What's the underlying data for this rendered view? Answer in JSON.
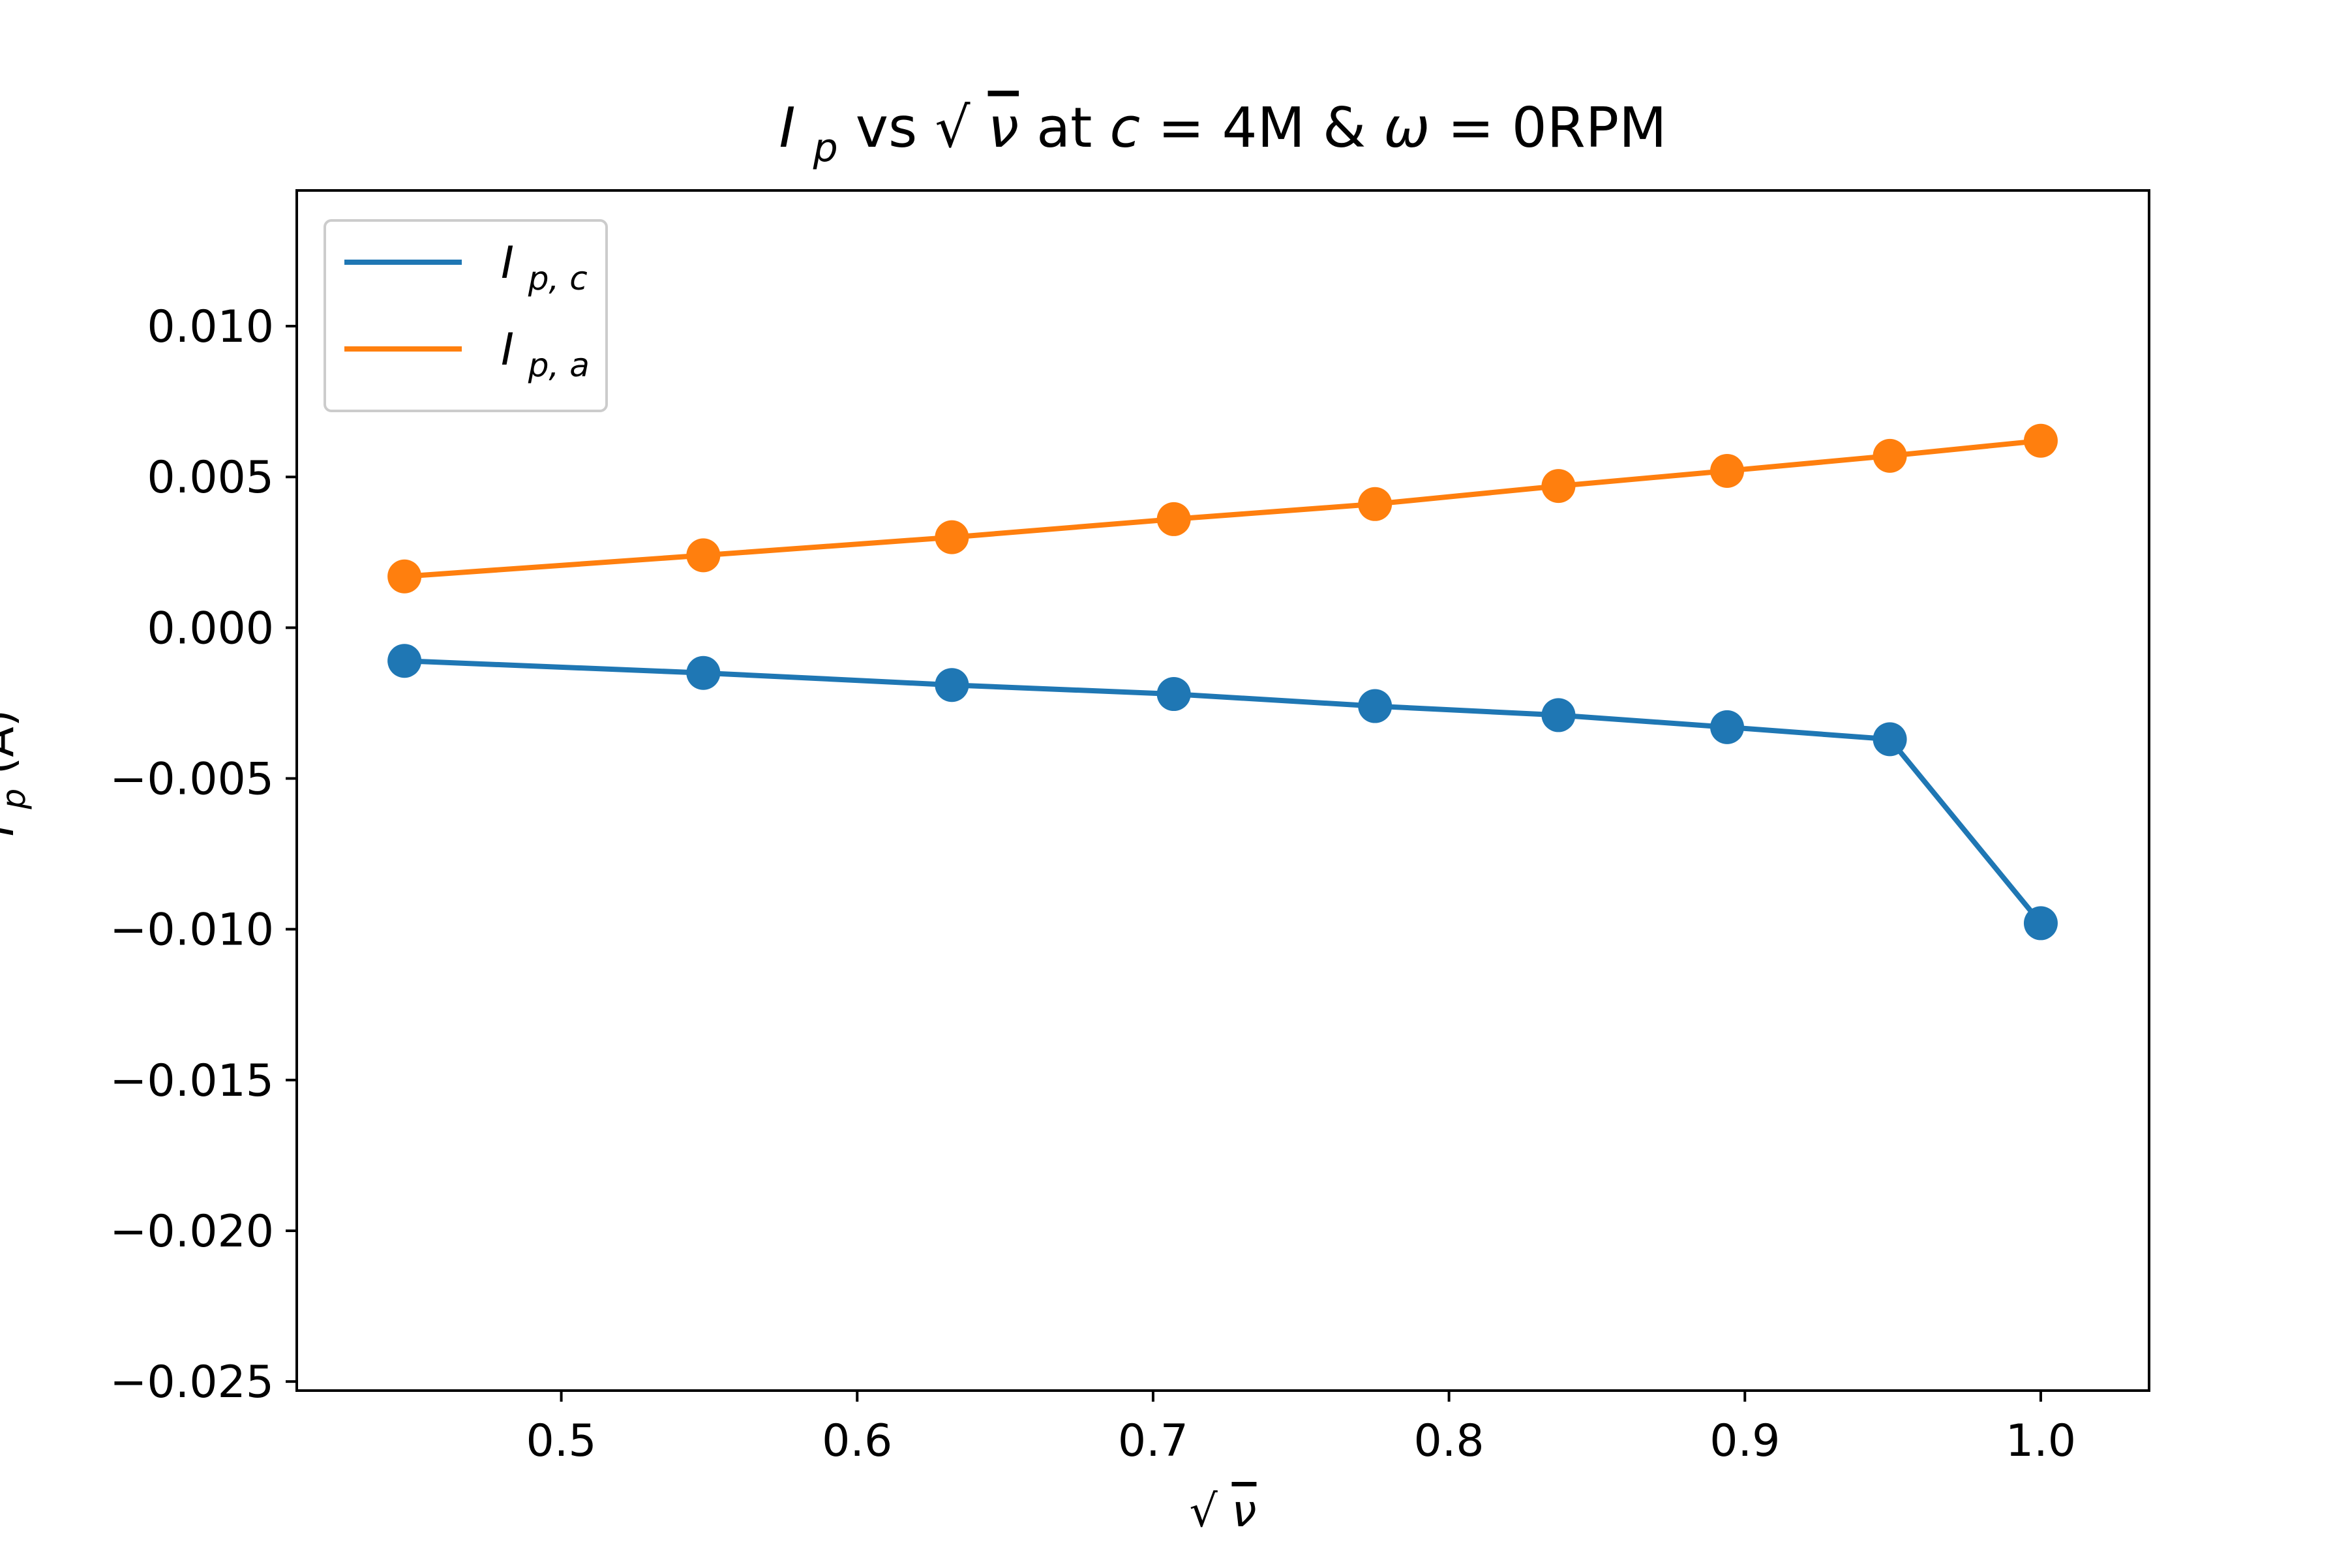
{
  "chart_data": {
    "type": "line",
    "title": {
      "main": "I",
      "main_sub": "p",
      "mid1": " vs ",
      "sqrt": "√",
      "var": "ν",
      "mid2": " at ",
      "c": "c",
      "cval": " = 4M & ",
      "omega": "ω",
      "omegaval": " = 0RPM"
    },
    "xlabel": {
      "sqrt": "√",
      "var": "ν"
    },
    "ylabel": {
      "main": "I",
      "sub": "p",
      "unit": "(A)"
    },
    "xlim": [
      0.4106,
      1.0366
    ],
    "ylim": [
      -0.0253,
      0.0145
    ],
    "x_ticks": [
      {
        "value": 0.5,
        "label": "0.5"
      },
      {
        "value": 0.6,
        "label": "0.6"
      },
      {
        "value": 0.7,
        "label": "0.7"
      },
      {
        "value": 0.8,
        "label": "0.8"
      },
      {
        "value": 0.9,
        "label": "0.9"
      },
      {
        "value": 1.0,
        "label": "1.0"
      }
    ],
    "y_ticks": [
      {
        "value": 0.01,
        "label": "0.010"
      },
      {
        "value": 0.005,
        "label": "0.005"
      },
      {
        "value": 0.0,
        "label": "0.000"
      },
      {
        "value": -0.005,
        "label": "−0.005"
      },
      {
        "value": -0.01,
        "label": "−0.010"
      },
      {
        "value": -0.015,
        "label": "−0.015"
      },
      {
        "value": -0.02,
        "label": "−0.020"
      },
      {
        "value": -0.025,
        "label": "−0.025"
      }
    ],
    "grid": false,
    "legend_position": "top-left",
    "x": [
      0.447,
      0.548,
      0.632,
      0.707,
      0.775,
      0.837,
      0.894,
      0.949,
      1.0
    ],
    "series": [
      {
        "name": "I_p,c",
        "legend_main": "I",
        "legend_sub": "p, c",
        "color": "#1f77b4",
        "values": [
          -0.0011,
          -0.0015,
          -0.0019,
          -0.0022,
          -0.0026,
          -0.0029,
          -0.0033,
          -0.0037,
          -0.0098
        ]
      },
      {
        "name": "I_p,a",
        "legend_main": "I",
        "legend_sub": "p, a",
        "color": "#ff7f0e",
        "values": [
          0.0017,
          0.0024,
          0.003,
          0.0036,
          0.0041,
          0.0047,
          0.0052,
          0.0057,
          0.0062
        ]
      }
    ]
  }
}
